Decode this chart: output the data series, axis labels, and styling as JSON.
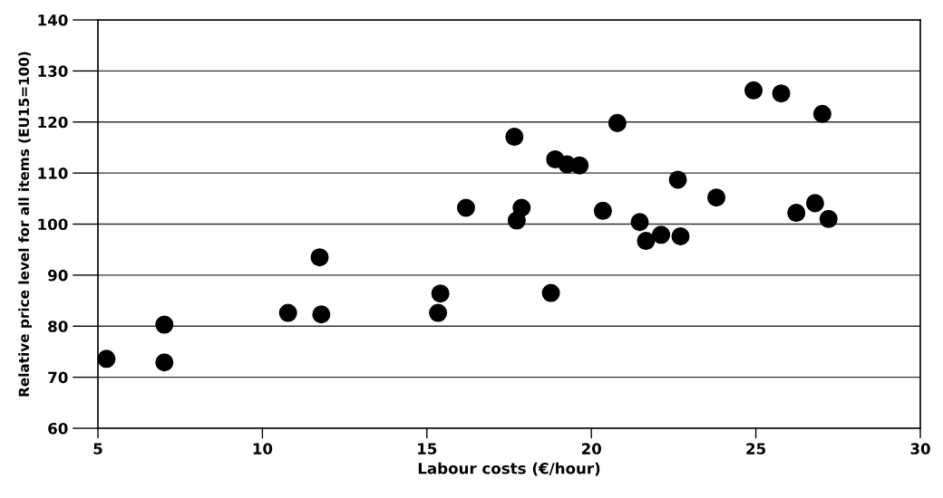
{
  "chart_data": {
    "type": "scatter",
    "xlabel": "Labour costs (€/hour)",
    "ylabel": "Relative price level for all items (EU15=100)",
    "x": [
      5.26,
      7.02,
      7.02,
      10.78,
      11.74,
      11.79,
      15.34,
      15.41,
      16.19,
      17.66,
      17.73,
      17.88,
      18.77,
      18.9,
      19.26,
      19.64,
      20.35,
      20.79,
      21.47,
      21.66,
      22.12,
      22.63,
      22.71,
      23.8,
      24.93,
      25.77,
      26.23,
      26.8,
      27.02,
      27.21
    ],
    "values": [
      73.6,
      80.3,
      72.9,
      82.6,
      93.5,
      82.3,
      82.6,
      86.4,
      103.2,
      117.1,
      100.7,
      103.2,
      86.5,
      112.7,
      111.7,
      111.5,
      102.6,
      119.8,
      100.4,
      96.7,
      97.9,
      108.7,
      97.6,
      105.2,
      126.2,
      125.6,
      102.2,
      104.1,
      121.6,
      101.0
    ],
    "color": "#000000",
    "marker": "circle",
    "xlim": [
      5,
      30
    ],
    "xticks": [
      5,
      10,
      15,
      20,
      25,
      30
    ],
    "ylim": [
      60,
      140
    ],
    "yticks": [
      60,
      70,
      80,
      90,
      100,
      110,
      120,
      130,
      140
    ],
    "grid": "y"
  }
}
